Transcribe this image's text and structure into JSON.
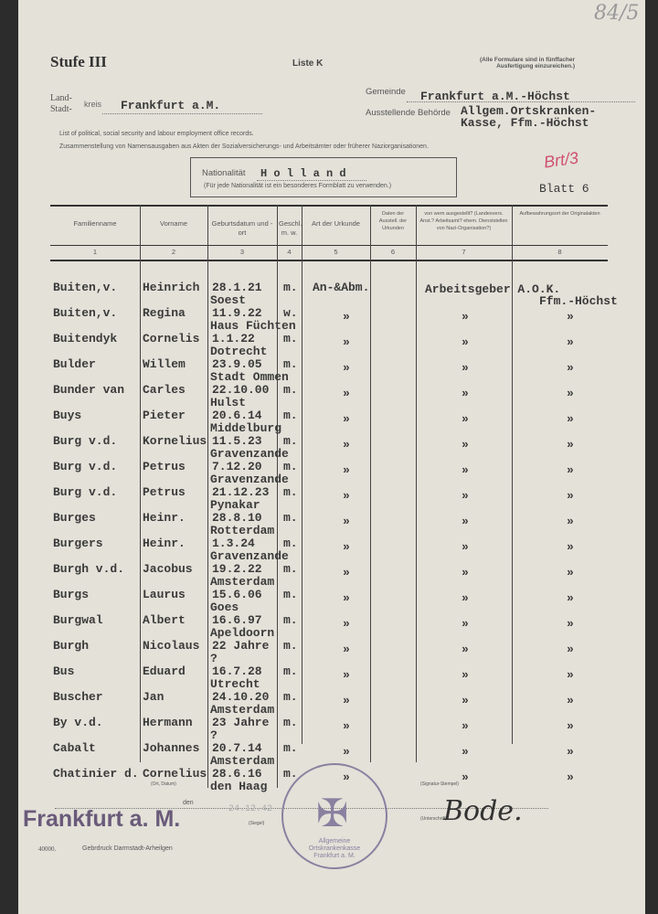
{
  "header": {
    "stufe": "Stufe III",
    "liste": "Liste K",
    "note_line1": "(Alle Formulare sind in fünffacher",
    "note_line2": "Ausfertigung einzureichen.)",
    "handwritten_number": "84/5",
    "land": "Land-",
    "stadt": "Stadt-",
    "kreis": "kreis",
    "kreis_value": "Frankfurt a.M.",
    "gemeinde_label": "Gemeinde",
    "gemeinde_value": "Frankfurt a.M.-Höchst",
    "behoerde_label": "Ausstellende Behörde",
    "behoerde_value_1": "Allgem.Ortskranken-",
    "behoerde_value_2": "Kasse, Ffm.-Höchst",
    "english_line": "List of political, social security and labour employment office records.",
    "german_line": "Zusammenstellung von Namensausgaben aus Akten der Sozialversicherungs- und Arbeitsämter oder früherer Naziorganisationen.",
    "nationalitaet_label": "Nationalität",
    "nationalitaet_value": "H o l l a n d",
    "nationalitaet_note": "(Für jede Nationalität ist ein besonderes Formblatt zu verwenden.)",
    "red_annotation": "Brt/3",
    "blatt": "Blatt 6"
  },
  "table": {
    "columns": [
      {
        "label": "Familienname",
        "num": "1"
      },
      {
        "label": "Vorname",
        "num": "2"
      },
      {
        "label": "Geburtsdatum und -ort",
        "num": "3"
      },
      {
        "label": "Geschl. m. w.",
        "num": "4"
      },
      {
        "label": "Art der Urkunde",
        "num": "5"
      },
      {
        "label": "Daten der Ausstell. der Urkunden",
        "num": "6"
      },
      {
        "label": "von wem ausgestellt? (Landesvers. Anst.? Arbeitsamt? ehem. Dienststellen von Nazi-Organisation?)",
        "num": "7"
      },
      {
        "label": "Aufbewahrungsort der Originalakten",
        "num": "8"
      }
    ],
    "rows": [
      {
        "family": "Buiten,v.",
        "given": "Heinrich",
        "date": "28.1.21",
        "place": "Soest",
        "sex": "m.",
        "art": "An-&Abm.",
        "von": "Arbeitsgeber A.O.K.",
        "aufb": "Ffm.-Höchst"
      },
      {
        "family": "Buiten,v.",
        "given": "Regina",
        "date": "11.9.22",
        "place": "Haus Füchten",
        "sex": "w.",
        "art": "»",
        "von": "»",
        "aufb": "»"
      },
      {
        "family": "Buitendyk",
        "given": "Cornelis",
        "date": "1.1.22",
        "place": "Dotrecht",
        "sex": "m.",
        "art": "»",
        "von": "»",
        "aufb": "»"
      },
      {
        "family": "Bulder",
        "given": "Willem",
        "date": "23.9.05",
        "place": "Stadt Ommen",
        "sex": "m.",
        "art": "»",
        "von": "»",
        "aufb": "»"
      },
      {
        "family": "Bunder van",
        "given": "Carles",
        "date": "22.10.00",
        "place": "Hulst",
        "sex": "m.",
        "art": "»",
        "von": "»",
        "aufb": "»"
      },
      {
        "family": "Buys",
        "given": "Pieter",
        "date": "20.6.14",
        "place": "Middelburg",
        "sex": "m.",
        "art": "»",
        "von": "»",
        "aufb": "»"
      },
      {
        "family": "Burg v.d.",
        "given": "Kornelius",
        "date": "11.5.23",
        "place": "Gravenzande",
        "sex": "m.",
        "art": "»",
        "von": "»",
        "aufb": "»"
      },
      {
        "family": "Burg v.d.",
        "given": "Petrus",
        "date": "7.12.20",
        "place": "Gravenzande",
        "sex": "m.",
        "art": "»",
        "von": "»",
        "aufb": "»"
      },
      {
        "family": "Burg v.d.",
        "given": "Petrus",
        "date": "21.12.23",
        "place": "Pynakar",
        "sex": "m.",
        "art": "»",
        "von": "»",
        "aufb": "»"
      },
      {
        "family": "Burges",
        "given": "Heinr.",
        "date": "28.8.10",
        "place": "Rotterdam",
        "sex": "m.",
        "art": "»",
        "von": "»",
        "aufb": "»"
      },
      {
        "family": "Burgers",
        "given": "Heinr.",
        "date": "1.3.24",
        "place": "Gravenzande",
        "sex": "m.",
        "art": "»",
        "von": "»",
        "aufb": "»"
      },
      {
        "family": "Burgh v.d.",
        "given": "Jacobus",
        "date": "19.2.22",
        "place": "Amsterdam",
        "sex": "m.",
        "art": "»",
        "von": "»",
        "aufb": "»"
      },
      {
        "family": "Burgs",
        "given": "Laurus",
        "date": "15.6.06",
        "place": "Goes",
        "sex": "m.",
        "art": "»",
        "von": "»",
        "aufb": "»"
      },
      {
        "family": "Burgwal",
        "given": "Albert",
        "date": "16.6.97",
        "place": "Apeldoorn",
        "sex": "m.",
        "art": "»",
        "von": "»",
        "aufb": "»"
      },
      {
        "family": "Burgh",
        "given": "Nicolaus",
        "date": "22 Jahre",
        "place": "?",
        "sex": "m.",
        "art": "»",
        "von": "»",
        "aufb": "»"
      },
      {
        "family": "Bus",
        "given": "Eduard",
        "date": "16.7.28",
        "place": "Utrecht",
        "sex": "m.",
        "art": "»",
        "von": "»",
        "aufb": "»"
      },
      {
        "family": "Buscher",
        "given": "Jan",
        "date": "24.10.20",
        "place": "Amsterdam",
        "sex": "m.",
        "art": "»",
        "von": "»",
        "aufb": "»"
      },
      {
        "family": "By v.d.",
        "given": "Hermann",
        "date": "23 Jahre",
        "place": "?",
        "sex": "m.",
        "art": "»",
        "von": "»",
        "aufb": "»"
      },
      {
        "family": "Cabalt",
        "given": "Johannes",
        "date": "20.7.14",
        "place": "Amsterdam",
        "sex": "m.",
        "art": "»",
        "von": "»",
        "aufb": "»"
      },
      {
        "family": "Chatinier d.",
        "given": "Cornelius",
        "date": "28.6.16",
        "place": "den Haag",
        "sex": "m.",
        "art": "»",
        "von": "»",
        "aufb": "»"
      }
    ]
  },
  "footer": {
    "ort_datum_label": "(Ort, Datum)",
    "den": "den",
    "date_stamp": "24.12.42",
    "city_stamp": "Frankfurt a. M.",
    "siegel_label": "(Siegel)",
    "signature_stamp_label": "(Signatur-Stempel)",
    "unterschrift_label": "(Unterschrift)",
    "signature": "Bode.",
    "seal_text": "Allgemeine Ortskrankenkasse Frankfurt a. M.",
    "form_number": "40000.",
    "printer": "Gebrdruck Darmstadt-Arheilgen"
  }
}
